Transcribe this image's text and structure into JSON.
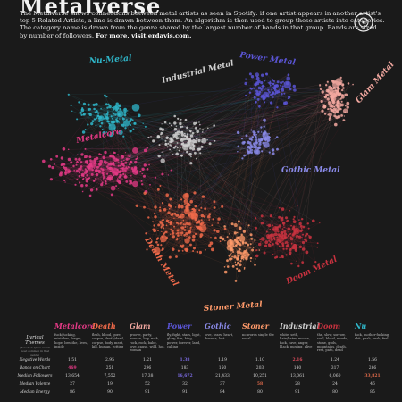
{
  "header": {
    "title": "Metalverse",
    "intro": "The Metalverse shows connections between metal artists as seen in Spotify: if one artist appears in another artist's top 5 Related Artists, a line is drawn between them. An algorithm is then used to group these artists into categories. The category name is drawn from the genre shared by the largest number of bands in that group. Bands are sized by number of followers.",
    "more": "For more, visit erdavis.com."
  },
  "network": {
    "groups": [
      {
        "name": "Nu-Metal",
        "color": "#2fb6c9"
      },
      {
        "name": "Industrial Metal",
        "color": "#cfcfcf"
      },
      {
        "name": "Power Metal",
        "color": "#5b55d6"
      },
      {
        "name": "Glam Metal",
        "color": "#f3a8a0"
      },
      {
        "name": "Metalcore",
        "color": "#e43a86"
      },
      {
        "name": "Gothic Metal",
        "color": "#8a8ae8"
      },
      {
        "name": "Death Metal",
        "color": "#f06a4a"
      },
      {
        "name": "Doom Metal",
        "color": "#c8323f"
      },
      {
        "name": "Stoner Metal",
        "color": "#ff9a6a"
      }
    ]
  },
  "table": {
    "header_label": "Lyrical Themes",
    "header_sub": "(Based on lyrics words most common in that genre)",
    "rows": [
      "Negative Words",
      "Bands on Chart",
      "Median Followers",
      "Median Valence",
      "Median Energy"
    ],
    "columns": [
      {
        "name": "Metalcore",
        "color": "#e43a86",
        "themes": "fuck/fucking, mistakes, forget, hope, breathe, lives, inside",
        "cells": [
          "1.51",
          "469",
          "13,654",
          "27",
          "86"
        ]
      },
      {
        "name": "Death",
        "color": "#f06a4a",
        "themes": "flesh, blood, gore, corpse, death/dead, corpse, body, meat, kill, human, rotting",
        "cells": [
          "2.95",
          "251",
          "7,552",
          "19",
          "90"
        ]
      },
      {
        "name": "Glam",
        "color": "#f3a8a0",
        "themes": "groove, party, woman, boy, rock, rock, rock, babe, love, cause, wild, hot, woman",
        "cells": [
          "1.21",
          "296",
          "17.38",
          "52",
          "91"
        ]
      },
      {
        "name": "Power",
        "color": "#5b55d6",
        "themes": "fly, fight, stars, light, glory, fire, king, power, forever, land, calling",
        "cells": [
          "1.38",
          "183",
          "16,672",
          "32",
          "91"
        ]
      },
      {
        "name": "Gothic",
        "color": "#8a8ae8",
        "themes": "love, tears, heart, dreams, lost",
        "cells": [
          "1.19",
          "150",
          "21,433",
          "37",
          "84"
        ]
      },
      {
        "name": "Stoner",
        "color": "#ff9a6a",
        "themes": "no words single the vocal",
        "cells": [
          "1.10",
          "203",
          "10,251",
          "58",
          "80"
        ]
      },
      {
        "name": "Industrial",
        "color": "#cfcfcf",
        "themes": "white, seth, hate/hater, mouse, fuck, cave, anger, black, moving, alive",
        "cells": [
          "2.16",
          "140",
          "13,061",
          "28",
          "91"
        ]
      },
      {
        "name": "Doom",
        "color": "#c8323f",
        "themes": "the, slow, sorrow, soul, blood, words, stone, gods, mountains, death, rest, path, dead",
        "cells": [
          "1.24",
          "317",
          "6,060",
          "24",
          "80"
        ]
      },
      {
        "name": "Nu",
        "color": "#2fb6c9",
        "themes": "fuck, mother-fucking, shit, yeah, yeah, feel",
        "cells": [
          "1.56",
          "266",
          "33,821",
          "46",
          "85"
        ]
      }
    ],
    "highlights": [
      {
        "row": 0,
        "col": 6,
        "color": "#e04b5c"
      },
      {
        "row": 0,
        "col": 3,
        "color": "#7a6ae0"
      },
      {
        "row": 1,
        "col": 0,
        "color": "#e43a86"
      },
      {
        "row": 2,
        "col": 3,
        "color": "#7a6ae0"
      },
      {
        "row": 2,
        "col": 8,
        "color": "#e06a4a"
      },
      {
        "row": 3,
        "col": 5,
        "color": "#e06a4a"
      }
    ]
  }
}
